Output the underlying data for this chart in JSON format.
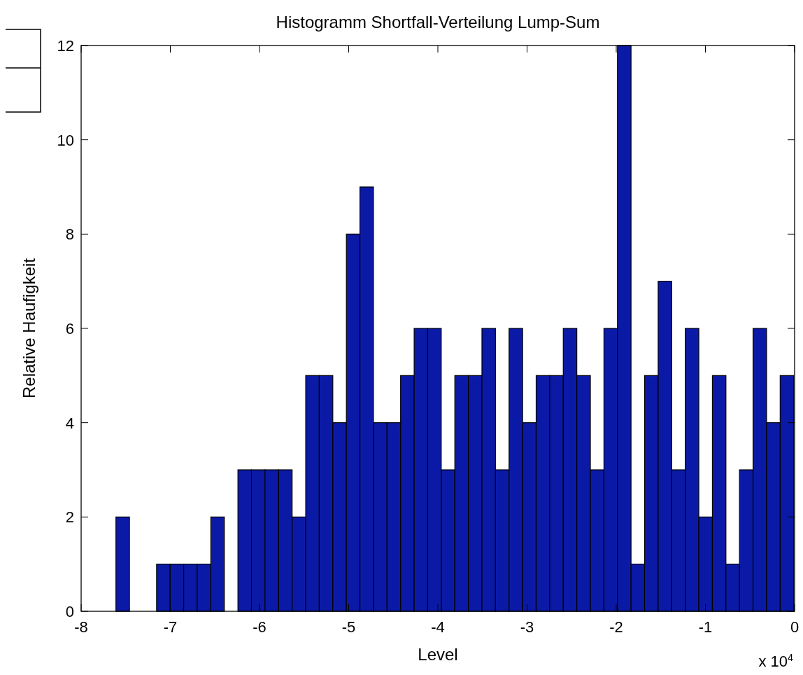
{
  "chart_data": {
    "type": "histogram",
    "title": "Histogramm Shortfall-Verteilung Lump-Sum",
    "xlabel": "Level",
    "ylabel": "Relative Haufigkeit",
    "annotations": [
      "x 10$^{4}$"
    ],
    "bins": [
      -7.61,
      -7.458,
      -7.306,
      -7.154,
      -7.002,
      -6.85,
      -6.698,
      -6.546,
      -6.394,
      -6.242,
      -6.09,
      -5.938,
      -5.786,
      -5.634,
      -5.482,
      -5.33,
      -5.178,
      -5.026,
      -4.874,
      -4.722,
      -4.57,
      -4.418,
      -4.266,
      -4.114,
      -3.962,
      -3.81,
      -3.658,
      -3.506,
      -3.354,
      -3.202,
      -3.05,
      -2.898,
      -2.746,
      -2.594,
      -2.442,
      -2.29,
      -2.138,
      -1.986,
      -1.834,
      -1.682,
      -1.53,
      -1.378,
      -1.226,
      -1.074,
      -0.922,
      -0.77,
      -0.618,
      -0.466,
      -0.314,
      -0.162,
      -0.01
    ],
    "values": [
      2,
      0,
      0,
      1,
      1,
      1,
      1,
      2,
      0,
      3,
      3,
      3,
      3,
      2,
      5,
      5,
      4,
      8,
      9,
      4,
      4,
      5,
      6,
      6,
      3,
      5,
      5,
      6,
      3,
      6,
      4,
      5,
      5,
      6,
      5,
      3,
      6,
      12,
      1,
      5,
      7,
      3,
      6,
      2,
      5,
      1,
      3,
      6,
      4,
      5
    ],
    "color": "#0b1aa6",
    "xlim": [
      -8,
      0
    ],
    "xticks": [
      -8,
      -7,
      -6,
      -5,
      -4,
      -3,
      -2,
      -1,
      0
    ],
    "ylim": [
      0,
      12
    ],
    "yticks": [
      0,
      2,
      4,
      6,
      8,
      10,
      12
    ],
    "grid": false
  }
}
